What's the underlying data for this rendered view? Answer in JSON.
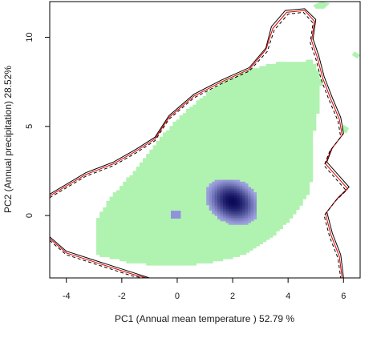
{
  "chart_data": {
    "type": "heatmap",
    "title": "",
    "xlabel": "PC1 (Annual mean temperature ) 52.79 %",
    "ylabel": "PC2 (Annual precipitation) 28.52%",
    "xlim": [
      -4.6,
      6.6
    ],
    "ylim": [
      -3.5,
      12.0
    ],
    "x_ticks": [
      -4,
      -2,
      0,
      2,
      4,
      6
    ],
    "y_ticks": [
      0,
      5,
      10
    ],
    "grid": false,
    "legend": "none",
    "colors": {
      "available_environment": "#b0f2b0",
      "occupied_density_low": "#9fa3e0",
      "occupied_density_high": "#0a0a5a",
      "contour_solid": "#000000",
      "contour_red": "#e00000",
      "contour_dashed": "#000000"
    },
    "available_region": [
      [
        -2.9,
        -2.2
      ],
      [
        -2.9,
        -0.2
      ],
      [
        -2.4,
        1.0
      ],
      [
        -1.6,
        2.4
      ],
      [
        -0.6,
        4.4
      ],
      [
        0.4,
        6.0
      ],
      [
        1.5,
        7.4
      ],
      [
        2.6,
        8.2
      ],
      [
        3.6,
        8.6
      ],
      [
        4.9,
        8.7
      ],
      [
        5.2,
        7.6
      ],
      [
        5.1,
        6.0
      ],
      [
        4.9,
        4.4
      ],
      [
        4.9,
        2.4
      ],
      [
        4.7,
        1.2
      ],
      [
        4.2,
        0.0
      ],
      [
        3.4,
        -1.2
      ],
      [
        2.4,
        -2.2
      ],
      [
        1.0,
        -2.7
      ],
      [
        -0.6,
        -2.8
      ],
      [
        -1.8,
        -2.6
      ]
    ],
    "available_patches": [
      [
        [
          5.0,
          11.6
        ],
        [
          5.3,
          11.6
        ],
        [
          5.5,
          11.9
        ],
        [
          5.2,
          12.0
        ],
        [
          4.9,
          11.8
        ]
      ],
      [
        [
          6.3,
          9.0
        ],
        [
          6.5,
          8.8
        ],
        [
          6.6,
          9.0
        ],
        [
          6.4,
          9.2
        ]
      ],
      [
        [
          5.9,
          4.8
        ],
        [
          6.1,
          4.6
        ],
        [
          6.2,
          4.9
        ],
        [
          6.0,
          5.1
        ]
      ]
    ],
    "occupied_density": {
      "peak": [
        2.0,
        0.8
      ],
      "extent": [
        [
          0.95,
          2.8
        ],
        [
          -1.3,
          1.95
        ]
      ],
      "outlier_cell": [
        -0.05,
        0.05
      ]
    },
    "contours": [
      {
        "style": "solid",
        "color": "#000000",
        "points": [
          [
            -4.6,
            1.2
          ],
          [
            -3.3,
            2.4
          ],
          [
            -2.3,
            3.0
          ],
          [
            -1.5,
            3.7
          ],
          [
            -0.8,
            4.4
          ],
          [
            -0.3,
            5.6
          ],
          [
            0.6,
            6.8
          ],
          [
            1.6,
            7.6
          ],
          [
            2.6,
            8.3
          ],
          [
            3.2,
            9.4
          ],
          [
            3.4,
            10.6
          ],
          [
            3.9,
            11.5
          ],
          [
            4.6,
            11.6
          ],
          [
            5.0,
            11.0
          ],
          [
            4.9,
            9.9
          ],
          [
            5.1,
            9.0
          ],
          [
            5.3,
            7.8
          ],
          [
            5.6,
            6.6
          ],
          [
            5.9,
            5.5
          ],
          [
            6.0,
            4.6
          ],
          [
            5.6,
            3.8
          ],
          [
            5.4,
            3.0
          ],
          [
            5.8,
            2.3
          ],
          [
            6.2,
            1.6
          ],
          [
            5.8,
            1.0
          ],
          [
            5.4,
            0.2
          ],
          [
            5.6,
            -1.0
          ],
          [
            5.9,
            -2.2
          ],
          [
            6.0,
            -3.5
          ]
        ]
      },
      {
        "style": "solid",
        "color": "#e00000",
        "points": [
          [
            -4.6,
            1.1
          ],
          [
            -3.3,
            2.3
          ],
          [
            -2.3,
            2.9
          ],
          [
            -1.5,
            3.6
          ],
          [
            -0.8,
            4.3
          ],
          [
            -0.3,
            5.5
          ],
          [
            0.6,
            6.7
          ],
          [
            1.6,
            7.5
          ],
          [
            2.6,
            8.2
          ],
          [
            3.2,
            9.3
          ],
          [
            3.45,
            10.5
          ],
          [
            3.95,
            11.4
          ],
          [
            4.6,
            11.5
          ],
          [
            4.95,
            10.9
          ],
          [
            4.85,
            9.8
          ],
          [
            5.05,
            8.9
          ],
          [
            5.25,
            7.7
          ],
          [
            5.55,
            6.5
          ],
          [
            5.85,
            5.4
          ],
          [
            5.95,
            4.5
          ],
          [
            5.55,
            3.7
          ],
          [
            5.35,
            2.9
          ],
          [
            5.75,
            2.2
          ],
          [
            6.15,
            1.5
          ],
          [
            5.75,
            0.9
          ],
          [
            5.35,
            0.1
          ],
          [
            5.55,
            -1.1
          ],
          [
            5.85,
            -2.3
          ],
          [
            5.95,
            -3.5
          ]
        ]
      },
      {
        "style": "dashed",
        "color": "#000000",
        "points": [
          [
            -4.6,
            1.0
          ],
          [
            -3.3,
            2.2
          ],
          [
            -2.3,
            2.8
          ],
          [
            -1.5,
            3.5
          ],
          [
            -0.8,
            4.2
          ],
          [
            -0.3,
            5.4
          ],
          [
            0.6,
            6.6
          ],
          [
            1.6,
            7.4
          ],
          [
            2.6,
            8.1
          ],
          [
            3.25,
            9.2
          ],
          [
            3.5,
            10.4
          ],
          [
            4.0,
            11.3
          ],
          [
            4.55,
            11.4
          ],
          [
            4.9,
            10.8
          ],
          [
            4.8,
            9.7
          ],
          [
            5.0,
            8.8
          ],
          [
            5.2,
            7.6
          ],
          [
            5.5,
            6.4
          ],
          [
            5.8,
            5.3
          ],
          [
            5.9,
            4.4
          ],
          [
            5.5,
            3.6
          ],
          [
            5.3,
            2.8
          ],
          [
            5.7,
            2.1
          ],
          [
            6.1,
            1.4
          ],
          [
            5.7,
            0.8
          ],
          [
            5.3,
            0.0
          ],
          [
            5.5,
            -1.2
          ],
          [
            5.8,
            -2.4
          ],
          [
            5.9,
            -3.5
          ]
        ]
      },
      {
        "style": "solid",
        "color": "#000000",
        "points": [
          [
            -4.6,
            -1.2
          ],
          [
            -4.0,
            -2.0
          ],
          [
            -2.8,
            -2.6
          ],
          [
            -1.6,
            -3.2
          ],
          [
            -1.0,
            -3.5
          ]
        ]
      },
      {
        "style": "solid",
        "color": "#e00000",
        "points": [
          [
            -4.6,
            -1.3
          ],
          [
            -4.0,
            -2.1
          ],
          [
            -2.8,
            -2.7
          ],
          [
            -1.6,
            -3.3
          ],
          [
            -1.1,
            -3.5
          ]
        ]
      },
      {
        "style": "dashed",
        "color": "#000000",
        "points": [
          [
            -4.6,
            -1.4
          ],
          [
            -4.0,
            -2.2
          ],
          [
            -2.8,
            -2.8
          ],
          [
            -1.6,
            -3.4
          ],
          [
            -1.2,
            -3.5
          ]
        ]
      }
    ]
  }
}
